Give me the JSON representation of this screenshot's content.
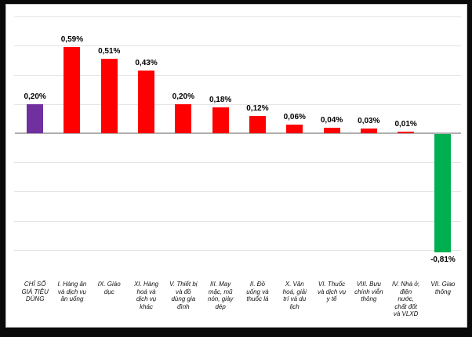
{
  "chart_data": {
    "type": "bar",
    "title": "",
    "xlabel": "",
    "ylabel": "",
    "legend": "none",
    "grid": true,
    "grid_step": 0.2,
    "ylim": [
      -1.0,
      0.8
    ],
    "decimal_separator": ",",
    "categories": [
      "CHỈ SỐ\nGIÁ TIÊU\nDÙNG",
      "I. Hàng ăn\nvà dịch vụ\năn uống",
      "IX. Giáo\ndục",
      "XI. Hàng\nhoá và\ndịch vụ\nkhác",
      "V. Thiết bị\nvà đồ\ndùng gia\nđình",
      "III. May\nmặc, mũ\nnón, giày\ndép",
      "II. Đồ\nuống và\nthuốc lá",
      "X. Văn\nhoá, giải\ntrí và du\nlịch",
      "VI. Thuốc\nvà dịch vụ\ny tế",
      "VIII. Bưu\nchính viễn\nthông",
      "IV. Nhà ở,\nđiện\nnước,\nchất đốt\nvà VLXD",
      "VII. Giao\nthông"
    ],
    "values": [
      0.2,
      0.59,
      0.51,
      0.43,
      0.2,
      0.18,
      0.12,
      0.06,
      0.04,
      0.03,
      0.01,
      -0.81
    ],
    "value_labels": [
      "0,20%",
      "0,59%",
      "0,51%",
      "0,43%",
      "0,20%",
      "0,18%",
      "0,12%",
      "0,06%",
      "0,04%",
      "0,03%",
      "0,01%",
      "-0,81%"
    ],
    "bar_colors": [
      "#7030A0",
      "#FF0000",
      "#FF0000",
      "#FF0000",
      "#FF0000",
      "#FF0000",
      "#FF0000",
      "#FF0000",
      "#FF0000",
      "#FF0000",
      "#FF0000",
      "#00B050"
    ],
    "colors": {
      "cpi_total": "#7030A0",
      "positive_group": "#FF0000",
      "negative_group": "#00B050",
      "axis_line": "#AEAEAE",
      "gridline": "#E4E4E4",
      "chart_border": "#C8C8C8",
      "frame": "#0A0A0A",
      "plot_background": "#FFFFFF"
    }
  }
}
